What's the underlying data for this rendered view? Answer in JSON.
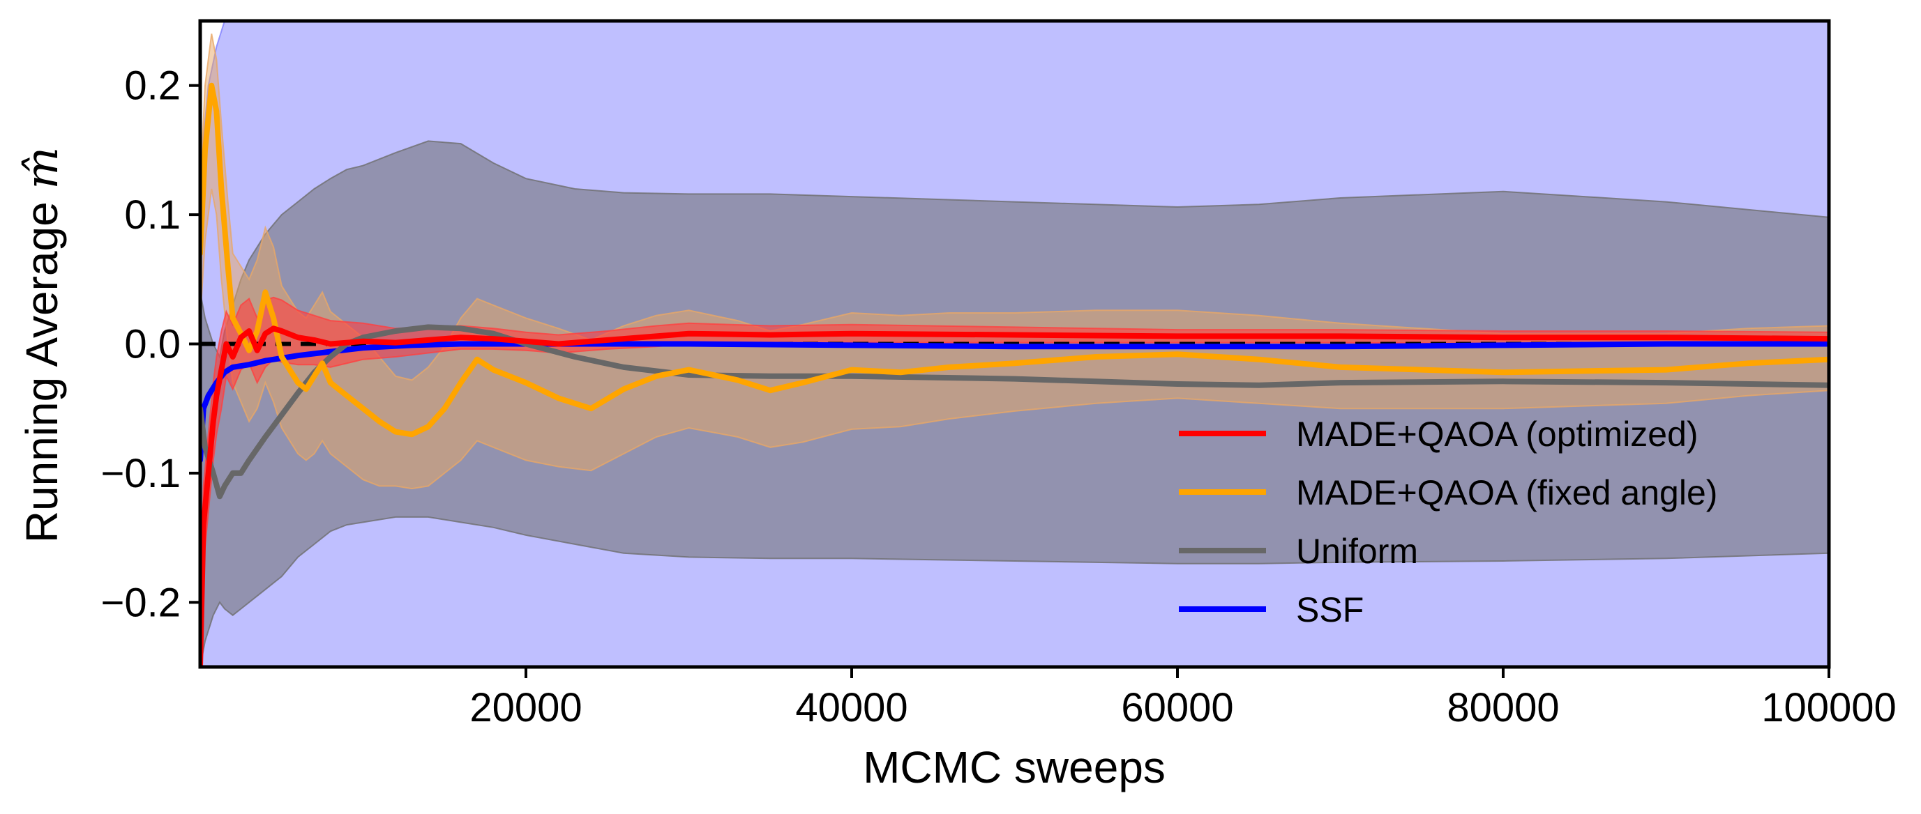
{
  "chart_data": {
    "type": "line",
    "xlabel": "MCMC sweeps",
    "ylabel": "Running Average ",
    "ylabel_symbol": "m̂",
    "xlim": [
      0,
      100000
    ],
    "ylim": [
      -0.25,
      0.25
    ],
    "x_ticks": [
      20000,
      40000,
      60000,
      80000,
      100000
    ],
    "x_tick_labels": [
      "20000",
      "40000",
      "60000",
      "80000",
      "100000"
    ],
    "y_ticks": [
      -0.2,
      -0.1,
      0.0,
      0.1,
      0.2
    ],
    "y_tick_labels": [
      "−0.2",
      "−0.1",
      "0.0",
      "0.1",
      "0.2"
    ],
    "reference_line": {
      "y": 0.0,
      "style": "dashed",
      "color": "#000000"
    },
    "grid": false,
    "legend_position": "lower-right",
    "series": [
      {
        "name": "SSF",
        "color": "#0000ff",
        "band_color": "#8080ff",
        "band_opacity": 0.5,
        "x": [
          0,
          200,
          500,
          1000,
          1500,
          2000,
          3000,
          4000,
          5000,
          6000,
          8000,
          10000,
          13000,
          16000,
          20000,
          30000,
          40000,
          50000,
          60000,
          70000,
          80000,
          90000,
          100000
        ],
        "y": [
          -0.09,
          -0.05,
          -0.04,
          -0.03,
          -0.022,
          -0.018,
          -0.016,
          -0.013,
          -0.011,
          -0.009,
          -0.006,
          -0.003,
          -0.001,
          0.0,
          0.0,
          0.0,
          -0.001,
          -0.002,
          -0.002,
          -0.002,
          -0.001,
          0.0,
          0.0
        ],
        "lower": [
          -0.25,
          -0.25,
          -0.25,
          -0.25,
          -0.25,
          -0.25,
          -0.25,
          -0.25,
          -0.25,
          -0.25,
          -0.25,
          -0.25,
          -0.25,
          -0.25,
          -0.25,
          -0.25,
          -0.25,
          -0.25,
          -0.25,
          -0.25,
          -0.25,
          -0.25,
          -0.25
        ],
        "upper": [
          0.1,
          0.16,
          0.2,
          0.23,
          0.25,
          0.25,
          0.25,
          0.25,
          0.25,
          0.25,
          0.25,
          0.25,
          0.25,
          0.25,
          0.25,
          0.25,
          0.25,
          0.25,
          0.25,
          0.25,
          0.25,
          0.25,
          0.25
        ]
      },
      {
        "name": "Uniform",
        "color": "#676767",
        "band_color": "#6e6e6e",
        "band_opacity": 0.55,
        "x": [
          0,
          300,
          800,
          1200,
          1500,
          2000,
          2500,
          3000,
          4000,
          5000,
          6000,
          7000,
          8000,
          9000,
          10000,
          12000,
          14000,
          16000,
          18000,
          20000,
          23000,
          26000,
          30000,
          35000,
          40000,
          50000,
          60000,
          65000,
          70000,
          80000,
          90000,
          100000
        ],
        "y": [
          -0.05,
          -0.08,
          -0.1,
          -0.118,
          -0.11,
          -0.1,
          -0.1,
          -0.09,
          -0.072,
          -0.055,
          -0.038,
          -0.022,
          -0.01,
          0.0,
          0.005,
          0.01,
          0.013,
          0.012,
          0.008,
          0.0,
          -0.01,
          -0.018,
          -0.024,
          -0.025,
          -0.025,
          -0.027,
          -0.031,
          -0.032,
          -0.03,
          -0.029,
          -0.03,
          -0.032
        ],
        "lower": [
          -0.25,
          -0.23,
          -0.21,
          -0.2,
          -0.205,
          -0.21,
          -0.205,
          -0.2,
          -0.19,
          -0.18,
          -0.165,
          -0.155,
          -0.145,
          -0.14,
          -0.138,
          -0.134,
          -0.134,
          -0.138,
          -0.142,
          -0.148,
          -0.155,
          -0.162,
          -0.165,
          -0.166,
          -0.166,
          -0.168,
          -0.17,
          -0.17,
          -0.169,
          -0.168,
          -0.166,
          -0.162
        ],
        "upper": [
          0.04,
          0.02,
          0.0,
          -0.01,
          0.01,
          0.03,
          0.05,
          0.065,
          0.085,
          0.1,
          0.11,
          0.12,
          0.128,
          0.135,
          0.138,
          0.148,
          0.157,
          0.155,
          0.14,
          0.128,
          0.12,
          0.117,
          0.116,
          0.116,
          0.114,
          0.11,
          0.106,
          0.108,
          0.113,
          0.118,
          0.11,
          0.098
        ]
      },
      {
        "name": "MADE+QAOA (fixed angle)",
        "color": "#ffa500",
        "band_color": "#e8a866",
        "band_opacity": 0.5,
        "x": [
          0,
          300,
          700,
          1000,
          1300,
          1700,
          2000,
          2500,
          3000,
          3500,
          4000,
          4500,
          5000,
          5500,
          6000,
          6500,
          7000,
          7500,
          8000,
          9000,
          10000,
          11000,
          12000,
          13000,
          14000,
          15000,
          16000,
          17000,
          18000,
          20000,
          22000,
          24000,
          26000,
          28000,
          30000,
          33000,
          35000,
          37000,
          40000,
          43000,
          46000,
          50000,
          55000,
          60000,
          65000,
          70000,
          75000,
          80000,
          85000,
          90000,
          95000,
          100000
        ],
        "y": [
          0.07,
          0.15,
          0.2,
          0.18,
          0.12,
          0.06,
          0.02,
          0.008,
          -0.005,
          0.01,
          0.04,
          0.02,
          -0.01,
          -0.02,
          -0.03,
          -0.035,
          -0.025,
          -0.015,
          -0.03,
          -0.04,
          -0.05,
          -0.06,
          -0.068,
          -0.07,
          -0.064,
          -0.05,
          -0.03,
          -0.012,
          -0.02,
          -0.03,
          -0.042,
          -0.05,
          -0.035,
          -0.025,
          -0.02,
          -0.028,
          -0.036,
          -0.03,
          -0.02,
          -0.022,
          -0.018,
          -0.015,
          -0.01,
          -0.008,
          -0.012,
          -0.018,
          -0.02,
          -0.022,
          -0.021,
          -0.02,
          -0.015,
          -0.012
        ],
        "lower": [
          0.02,
          0.08,
          0.12,
          0.1,
          0.05,
          0.0,
          -0.03,
          -0.045,
          -0.06,
          -0.05,
          -0.03,
          -0.045,
          -0.065,
          -0.075,
          -0.085,
          -0.09,
          -0.085,
          -0.075,
          -0.085,
          -0.095,
          -0.105,
          -0.11,
          -0.11,
          -0.112,
          -0.11,
          -0.1,
          -0.09,
          -0.075,
          -0.08,
          -0.09,
          -0.095,
          -0.098,
          -0.085,
          -0.072,
          -0.065,
          -0.072,
          -0.08,
          -0.076,
          -0.066,
          -0.064,
          -0.058,
          -0.052,
          -0.046,
          -0.042,
          -0.046,
          -0.05,
          -0.05,
          -0.05,
          -0.048,
          -0.046,
          -0.04,
          -0.036
        ],
        "upper": [
          0.12,
          0.2,
          0.24,
          0.22,
          0.17,
          0.11,
          0.07,
          0.06,
          0.05,
          0.065,
          0.09,
          0.075,
          0.045,
          0.035,
          0.025,
          0.02,
          0.03,
          0.04,
          0.025,
          0.015,
          0.005,
          -0.01,
          -0.025,
          -0.028,
          -0.018,
          -0.002,
          0.02,
          0.035,
          0.03,
          0.02,
          0.012,
          0.003,
          0.014,
          0.022,
          0.026,
          0.018,
          0.01,
          0.015,
          0.024,
          0.022,
          0.024,
          0.024,
          0.026,
          0.026,
          0.022,
          0.016,
          0.012,
          0.008,
          0.008,
          0.008,
          0.012,
          0.014
        ]
      },
      {
        "name": "MADE+QAOA (optimized)",
        "color": "#ff0000",
        "band_color": "#ff4040",
        "band_opacity": 0.6,
        "x": [
          0,
          200,
          500,
          800,
          1000,
          1300,
          1600,
          2000,
          2500,
          3000,
          3500,
          4000,
          4500,
          5000,
          6000,
          7000,
          8000,
          10000,
          12000,
          14000,
          16000,
          18000,
          20000,
          22000,
          25000,
          28000,
          30000,
          35000,
          40000,
          50000,
          60000,
          70000,
          80000,
          90000,
          100000
        ],
        "y": [
          -0.25,
          -0.14,
          -0.1,
          -0.06,
          -0.04,
          -0.02,
          0.0,
          -0.01,
          0.005,
          0.01,
          -0.005,
          0.008,
          0.012,
          0.01,
          0.005,
          0.003,
          0.0,
          0.002,
          0.001,
          0.003,
          0.005,
          0.004,
          0.002,
          0.0,
          0.003,
          0.006,
          0.008,
          0.007,
          0.008,
          0.007,
          0.006,
          0.006,
          0.005,
          0.005,
          0.004
        ],
        "lower": [
          -0.25,
          -0.17,
          -0.13,
          -0.09,
          -0.07,
          -0.05,
          -0.025,
          -0.035,
          -0.02,
          -0.015,
          -0.03,
          -0.018,
          -0.012,
          -0.014,
          -0.016,
          -0.016,
          -0.018,
          -0.012,
          -0.01,
          -0.007,
          -0.004,
          -0.004,
          -0.005,
          -0.007,
          -0.004,
          -0.002,
          0.0,
          0.0,
          0.001,
          0.001,
          0.001,
          0.001,
          0.0,
          0.0,
          -0.001
        ],
        "upper": [
          -0.2,
          -0.11,
          -0.07,
          -0.03,
          -0.01,
          0.01,
          0.025,
          0.015,
          0.03,
          0.035,
          0.02,
          0.034,
          0.036,
          0.034,
          0.026,
          0.022,
          0.018,
          0.016,
          0.012,
          0.013,
          0.014,
          0.012,
          0.009,
          0.007,
          0.01,
          0.014,
          0.016,
          0.014,
          0.015,
          0.013,
          0.011,
          0.011,
          0.01,
          0.01,
          0.009
        ]
      }
    ],
    "legend_order": [
      "MADE+QAOA (optimized)",
      "MADE+QAOA (fixed angle)",
      "Uniform",
      "SSF"
    ]
  }
}
